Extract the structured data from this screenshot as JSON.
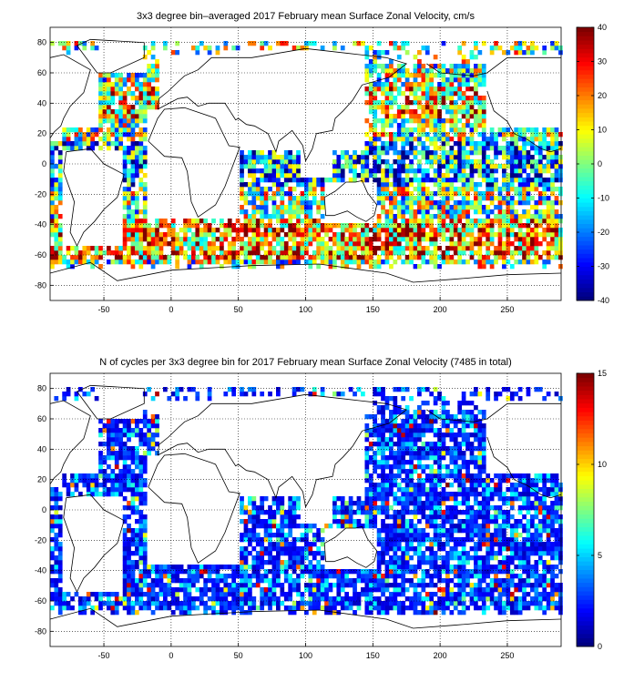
{
  "maps": [
    {
      "title": "3x3 degree bin–averaged 2017 February mean Surface Zonal Velocity, cm/s",
      "x_ticks": [
        "-50",
        "0",
        "50",
        "100",
        "150",
        "200",
        "250"
      ],
      "y_ticks": [
        "80",
        "60",
        "40",
        "20",
        "0",
        "-20",
        "-40",
        "-60",
        "-80"
      ],
      "colorbar_ticks": [
        "40",
        "30",
        "20",
        "10",
        "0",
        "-10",
        "-20",
        "-30",
        "-40"
      ],
      "colorbar_range": [
        -40,
        40
      ],
      "lon_range": [
        -90,
        290
      ],
      "lat_range": [
        -90,
        90
      ],
      "colormap": "jet",
      "field": "zonal-velocity"
    },
    {
      "title": "N of cycles per 3x3 degree bin for 2017 February mean Surface Zonal Velocity (7485 in total)",
      "x_ticks": [
        "-50",
        "0",
        "50",
        "100",
        "150",
        "200",
        "250"
      ],
      "y_ticks": [
        "80",
        "60",
        "40",
        "20",
        "0",
        "-20",
        "-40",
        "-60",
        "-80"
      ],
      "colorbar_ticks": [
        "15",
        "10",
        "5",
        "0"
      ],
      "colorbar_range": [
        0,
        15
      ],
      "lon_range": [
        -90,
        290
      ],
      "lat_range": [
        -90,
        90
      ],
      "colormap": "jet",
      "field": "cycle-count"
    }
  ]
}
